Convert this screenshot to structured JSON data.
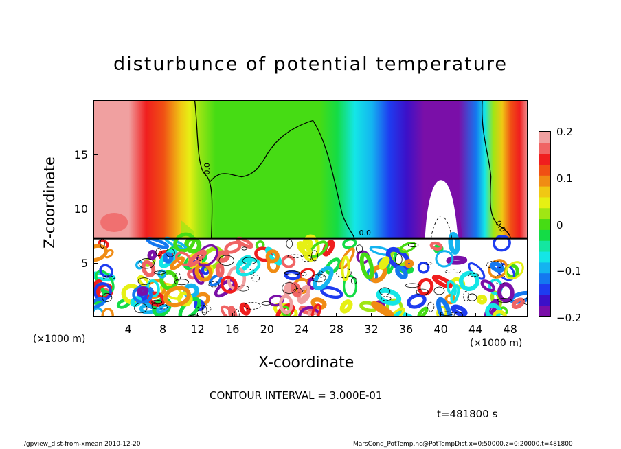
{
  "chart_data": {
    "type": "heatmap",
    "title": "disturbunce of potential temperature",
    "xlabel": "X-coordinate",
    "ylabel": "Z-coordinate",
    "x_unit_label": "(×1000 m)",
    "xlim": [
      0,
      50
    ],
    "ylim": [
      0,
      20
    ],
    "x_ticks": [
      "4",
      "8",
      "12",
      "16",
      "20",
      "24",
      "28",
      "32",
      "36",
      "40",
      "44",
      "48"
    ],
    "y_ticks": [
      "5",
      "10",
      "15"
    ],
    "colorbar": {
      "range": [
        -0.2,
        0.2
      ],
      "ticks": [
        "0.2",
        "0.1",
        "0",
        "−0.1",
        "−0.2"
      ],
      "colors": [
        "#7a0fa8",
        "#3c10c8",
        "#1e3cf0",
        "#1478f0",
        "#14b4f0",
        "#14e6e6",
        "#14e6a0",
        "#14dc46",
        "#46dc14",
        "#a0e614",
        "#e6f014",
        "#f0c814",
        "#f08c14",
        "#f05014",
        "#f01e1e",
        "#f06464",
        "#f0a0a0"
      ]
    },
    "contour_interval": "CONTOUR INTERVAL = 3.000E-01",
    "contour_labels": [
      "0.0",
      "0.0",
      "0.0"
    ],
    "time": "t=481800 s",
    "footer_left": "./gpview_dist-from-xmean  2010-12-20",
    "footer_right": "MarsCond_PotTemp.nc@PotTempDist,x=0:50000,z=0:20000,t=481800",
    "upper_profile": [
      [
        0,
        0.19
      ],
      [
        2,
        0.2
      ],
      [
        4,
        0.18
      ],
      [
        6,
        0.15
      ],
      [
        8,
        0.11
      ],
      [
        10,
        0.07
      ],
      [
        11,
        0.04
      ],
      [
        12,
        0.02
      ],
      [
        14,
        0.0
      ],
      [
        16,
        0.0
      ],
      [
        18,
        -0.01
      ],
      [
        20,
        -0.01
      ],
      [
        22,
        0.0
      ],
      [
        24,
        0.0
      ],
      [
        26,
        -0.01
      ],
      [
        28,
        -0.03
      ],
      [
        30,
        -0.06
      ],
      [
        32,
        -0.1
      ],
      [
        34,
        -0.14
      ],
      [
        36,
        -0.16
      ],
      [
        38,
        -0.19
      ],
      [
        40,
        -0.22
      ],
      [
        42,
        -0.2
      ],
      [
        44,
        -0.12
      ],
      [
        45,
        -0.06
      ],
      [
        46,
        0.02
      ],
      [
        47,
        0.07
      ],
      [
        48,
        0.11
      ],
      [
        49,
        0.15
      ],
      [
        50,
        0.18
      ]
    ],
    "interface_height": 7.3
  }
}
